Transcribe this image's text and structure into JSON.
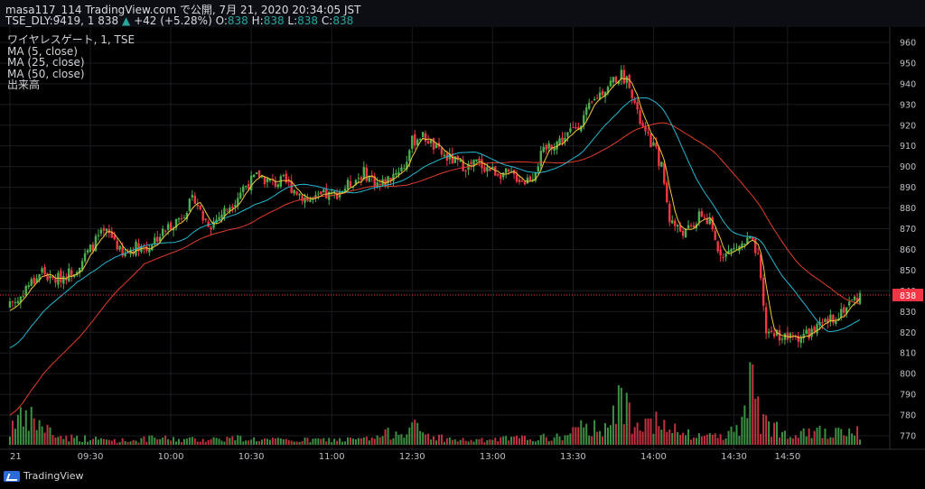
{
  "header": {
    "line1": "masa117_114 TradingView.com で公開, 7月 21, 2020 20:34:05 JST",
    "symbol": "TSE_DLY:9419, 1",
    "last": "838",
    "change": "+42 (+5.28%)",
    "o_label": "O:",
    "o_val": "838",
    "h_label": "H:",
    "h_val": "838",
    "l_label": "L:",
    "l_val": "838",
    "c_label": "C:",
    "c_val": "838"
  },
  "legend": {
    "title": "ワイヤレスゲート, 1, TSE",
    "ma5": "MA (5, close)",
    "ma25": "MA (25, close)",
    "ma50": "MA (50, close)",
    "volume": "出来高"
  },
  "brand": "TradingView",
  "colors": {
    "up": "#26a69a",
    "down": "#ef5350",
    "candle_up": "#4caf50",
    "candle_down": "#f23645",
    "ma5": "#f0c93a",
    "ma25": "#26b6d1",
    "ma50": "#e23c2b",
    "price_line": "#f23645",
    "axis_text": "#bcc0c6",
    "grid": "#1a1d23"
  },
  "chart_data": {
    "type": "candlestick",
    "title": "ワイヤレスゲート, 1, TSE",
    "ylim": [
      765,
      965
    ],
    "y_ticks": [
      960,
      950,
      940,
      930,
      920,
      910,
      900,
      890,
      880,
      870,
      860,
      850,
      840,
      830,
      820,
      810,
      800,
      790,
      780,
      770
    ],
    "x_ticks": [
      {
        "label": "21",
        "t": 0
      },
      {
        "label": "09:30",
        "t": 30
      },
      {
        "label": "10:00",
        "t": 60
      },
      {
        "label": "10:30",
        "t": 90
      },
      {
        "label": "11:00",
        "t": 120
      },
      {
        "label": "12:30",
        "t": 150
      },
      {
        "label": "13:00",
        "t": 180
      },
      {
        "label": "13:30",
        "t": 210
      },
      {
        "label": "14:00",
        "t": 240
      },
      {
        "label": "14:30",
        "t": 270
      },
      {
        "label": "14:50",
        "t": 290
      }
    ],
    "t_range": [
      -1,
      318
    ],
    "last_price": "838",
    "series_names": [
      "MA (5, close)",
      "MA (25, close)",
      "MA (50, close)",
      "出来高"
    ],
    "close_anchors": [
      [
        0,
        835
      ],
      [
        3,
        835
      ],
      [
        6,
        842
      ],
      [
        9,
        845
      ],
      [
        12,
        850
      ],
      [
        15,
        845
      ],
      [
        18,
        846
      ],
      [
        21,
        848
      ],
      [
        24,
        850
      ],
      [
        27,
        855
      ],
      [
        30,
        860
      ],
      [
        33,
        866
      ],
      [
        36,
        868
      ],
      [
        39,
        865
      ],
      [
        42,
        856
      ],
      [
        45,
        860
      ],
      [
        48,
        862
      ],
      [
        51,
        860
      ],
      [
        54,
        865
      ],
      [
        57,
        868
      ],
      [
        60,
        872
      ],
      [
        63,
        875
      ],
      [
        66,
        880
      ],
      [
        69,
        885
      ],
      [
        72,
        875
      ],
      [
        75,
        872
      ],
      [
        78,
        876
      ],
      [
        81,
        880
      ],
      [
        84,
        884
      ],
      [
        87,
        890
      ],
      [
        90,
        893
      ],
      [
        93,
        896
      ],
      [
        96,
        893
      ],
      [
        99,
        892
      ],
      [
        102,
        893
      ],
      [
        105,
        890
      ],
      [
        108,
        887
      ],
      [
        111,
        884
      ],
      [
        114,
        884
      ],
      [
        117,
        886
      ],
      [
        120,
        886
      ],
      [
        123,
        888
      ],
      [
        126,
        891
      ],
      [
        129,
        894
      ],
      [
        132,
        897
      ],
      [
        135,
        894
      ],
      [
        138,
        891
      ],
      [
        141,
        894
      ],
      [
        144,
        898
      ],
      [
        147,
        900
      ],
      [
        150,
        912
      ],
      [
        153,
        915
      ],
      [
        156,
        913
      ],
      [
        159,
        908
      ],
      [
        162,
        905
      ],
      [
        165,
        903
      ],
      [
        168,
        901
      ],
      [
        171,
        900
      ],
      [
        174,
        902
      ],
      [
        177,
        900
      ],
      [
        180,
        898
      ],
      [
        183,
        897
      ],
      [
        186,
        896
      ],
      [
        189,
        895
      ],
      [
        192,
        893
      ],
      [
        195,
        896
      ],
      [
        198,
        905
      ],
      [
        201,
        910
      ],
      [
        204,
        912
      ],
      [
        207,
        914
      ],
      [
        210,
        918
      ],
      [
        213,
        922
      ],
      [
        216,
        928
      ],
      [
        219,
        934
      ],
      [
        222,
        938
      ],
      [
        225,
        942
      ],
      [
        228,
        944
      ],
      [
        231,
        941
      ],
      [
        234,
        925
      ],
      [
        237,
        915
      ],
      [
        240,
        910
      ],
      [
        243,
        900
      ],
      [
        246,
        875
      ],
      [
        249,
        870
      ],
      [
        252,
        868
      ],
      [
        255,
        872
      ],
      [
        258,
        877
      ],
      [
        261,
        872
      ],
      [
        264,
        860
      ],
      [
        267,
        858
      ],
      [
        270,
        860
      ],
      [
        273,
        862
      ],
      [
        276,
        865
      ],
      [
        279,
        855
      ],
      [
        282,
        820
      ],
      [
        285,
        820
      ],
      [
        288,
        818
      ],
      [
        291,
        817
      ],
      [
        294,
        818
      ],
      [
        297,
        819
      ],
      [
        300,
        821
      ],
      [
        303,
        823
      ],
      [
        306,
        826
      ],
      [
        309,
        829
      ],
      [
        312,
        833
      ],
      [
        315,
        836
      ],
      [
        317,
        838
      ]
    ],
    "volume_profile": [
      [
        0,
        14
      ],
      [
        2,
        38
      ],
      [
        5,
        24
      ],
      [
        8,
        30
      ],
      [
        12,
        22
      ],
      [
        18,
        10
      ],
      [
        25,
        8
      ],
      [
        35,
        6
      ],
      [
        45,
        5
      ],
      [
        55,
        8
      ],
      [
        65,
        6
      ],
      [
        75,
        7
      ],
      [
        85,
        8
      ],
      [
        95,
        6
      ],
      [
        105,
        5
      ],
      [
        115,
        6
      ],
      [
        125,
        6
      ],
      [
        135,
        7
      ],
      [
        150,
        22
      ],
      [
        155,
        12
      ],
      [
        165,
        6
      ],
      [
        175,
        5
      ],
      [
        185,
        7
      ],
      [
        195,
        8
      ],
      [
        205,
        9
      ],
      [
        212,
        18
      ],
      [
        220,
        22
      ],
      [
        225,
        30
      ],
      [
        228,
        55
      ],
      [
        232,
        32
      ],
      [
        238,
        38
      ],
      [
        242,
        22
      ],
      [
        248,
        16
      ],
      [
        255,
        10
      ],
      [
        265,
        12
      ],
      [
        272,
        18
      ],
      [
        274,
        68
      ],
      [
        276,
        74
      ],
      [
        280,
        26
      ],
      [
        285,
        22
      ],
      [
        290,
        14
      ],
      [
        295,
        20
      ],
      [
        300,
        18
      ],
      [
        305,
        12
      ],
      [
        310,
        14
      ],
      [
        315,
        18
      ],
      [
        317,
        12
      ]
    ]
  }
}
